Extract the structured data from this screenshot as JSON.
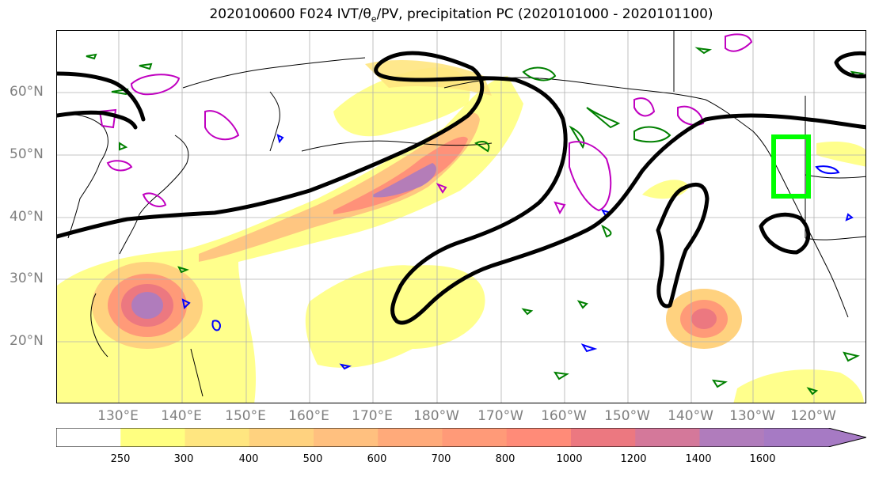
{
  "title": {
    "prefix": "2020100600 F024 IVT/",
    "theta": "θ",
    "sub": "e",
    "suffix": "/PV, precipitation PC (2020101000 - 2020101100)"
  },
  "lat_labels": [
    "60°N",
    "50°N",
    "40°N",
    "30°N",
    "20°N"
  ],
  "lon_labels": [
    "130°E",
    "140°E",
    "150°E",
    "160°E",
    "170°E",
    "180°W",
    "170°W",
    "160°W",
    "150°W",
    "140°W",
    "130°W",
    "120°W"
  ],
  "colorbar": {
    "ticks": [
      "250",
      "300",
      "400",
      "500",
      "600",
      "700",
      "800",
      "1000",
      "1200",
      "1400",
      "1600"
    ],
    "colors": [
      "#ffffff",
      "#ffff80",
      "#ffe680",
      "#ffd27f",
      "#ffc07f",
      "#ffaa7a",
      "#ff9a78",
      "#ff8b78",
      "#ec7880",
      "#d4789a",
      "#b07cbc",
      "#a67ac4"
    ],
    "extend": "max"
  },
  "colors": {
    "pv_contour": "#000000",
    "theta_e_positive": "#008000",
    "theta_e_negative": "#0000ff",
    "pv_anomaly": "#c000c0",
    "target_box": "#00ff00",
    "coast": "#000000",
    "grid": "#b0b0b0"
  }
}
